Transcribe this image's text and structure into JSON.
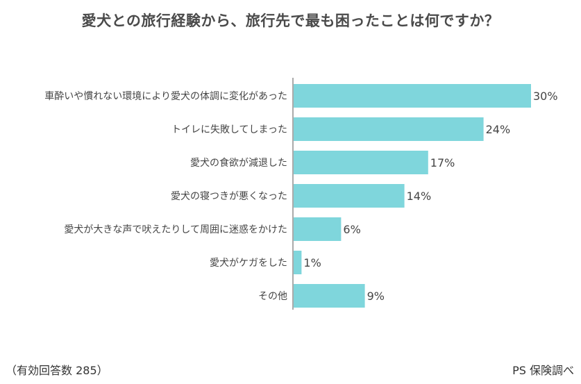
{
  "title": "愛犬との旅行経験から、旅行先で最も困ったことは何ですか？",
  "footnote_left": "（有効回答数 285）",
  "footnote_right": "PS 保険調べ",
  "colors": {
    "bar": "#7fd6dc",
    "axis": "#555555",
    "text": "#444444"
  },
  "chart_data": {
    "type": "bar",
    "orientation": "horizontal",
    "categories": [
      "車酔いや慣れない環境により愛犬の体調に変化があった",
      "トイレに失敗してしまった",
      "愛犬の食欲が減退した",
      "愛犬の寝つきが悪くなった",
      "愛犬が大きな声で吠えたりして周囲に迷惑をかけた",
      "愛犬がケガをした",
      "その他"
    ],
    "values": [
      30,
      24,
      17,
      14,
      6,
      1,
      9
    ],
    "value_labels": [
      "30%",
      "24%",
      "17%",
      "14%",
      "6%",
      "1%",
      "9%"
    ],
    "unit": "%",
    "xlim": [
      0,
      30
    ],
    "grid": false,
    "legend": "none"
  }
}
